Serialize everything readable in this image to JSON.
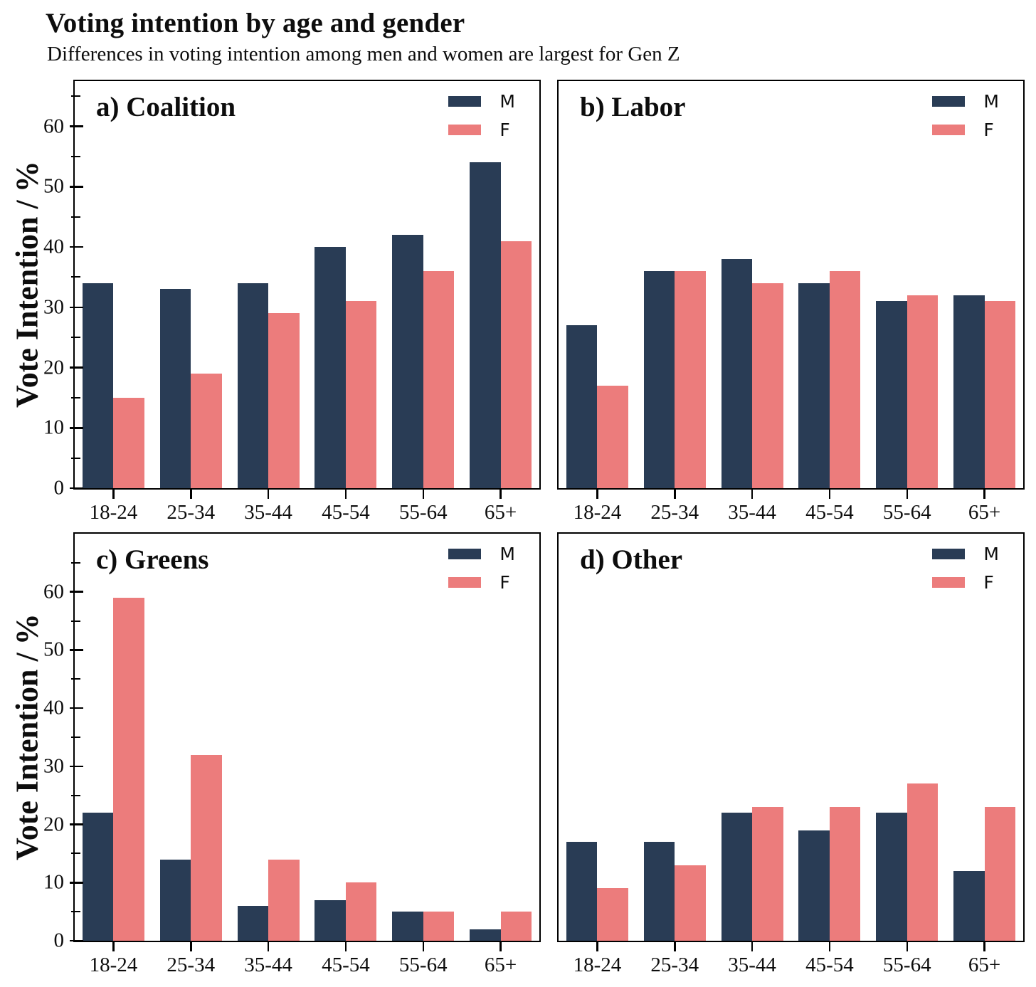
{
  "header": {
    "title": "Voting intention by age and gender",
    "subtitle": "Differences in voting intention among men and women are largest for Gen Z"
  },
  "y_axis": {
    "label": "Vote Intention / %",
    "tick_values": [
      0,
      10,
      20,
      30,
      40,
      50,
      60
    ],
    "minor_tick_values": [
      5,
      15,
      25,
      35,
      45,
      55,
      65
    ]
  },
  "legend": {
    "entries": [
      {
        "label": "M",
        "color": "#293C55"
      },
      {
        "label": "F",
        "color": "#EC7C7C"
      }
    ]
  },
  "colors": {
    "male": "#293C55",
    "female": "#EC7C7C",
    "axis": "#000000",
    "text": "#0d0d0d"
  },
  "categories": [
    "18-24",
    "25-34",
    "35-44",
    "45-54",
    "55-64",
    "65+"
  ],
  "chart_data": [
    {
      "type": "bar",
      "panel_label": "a) Coalition",
      "categories": [
        "18-24",
        "25-34",
        "35-44",
        "45-54",
        "55-64",
        "65+"
      ],
      "series": [
        {
          "name": "M",
          "values": [
            34,
            33,
            34,
            40,
            42,
            54
          ]
        },
        {
          "name": "F",
          "values": [
            15,
            19,
            29,
            31,
            36,
            41
          ]
        }
      ],
      "ylim": [
        0,
        67.5
      ],
      "yticks": [
        0,
        10,
        20,
        30,
        40,
        50,
        60
      ],
      "legend_position": "top-right",
      "grid": false
    },
    {
      "type": "bar",
      "panel_label": "b) Labor",
      "categories": [
        "18-24",
        "25-34",
        "35-44",
        "45-54",
        "55-64",
        "65+"
      ],
      "series": [
        {
          "name": "M",
          "values": [
            27,
            36,
            38,
            34,
            31,
            32
          ]
        },
        {
          "name": "F",
          "values": [
            17,
            36,
            34,
            36,
            32,
            31
          ]
        }
      ],
      "ylim": [
        0,
        67.5
      ],
      "yticks": [
        0,
        10,
        20,
        30,
        40,
        50,
        60
      ],
      "legend_position": "top-right",
      "grid": false
    },
    {
      "type": "bar",
      "panel_label": "c) Greens",
      "categories": [
        "18-24",
        "25-34",
        "35-44",
        "45-54",
        "55-64",
        "65+"
      ],
      "series": [
        {
          "name": "M",
          "values": [
            22,
            14,
            6,
            7,
            5,
            2
          ]
        },
        {
          "name": "F",
          "values": [
            59,
            32,
            14,
            10,
            5,
            5
          ]
        }
      ],
      "ylim": [
        0,
        70
      ],
      "yticks": [
        0,
        10,
        20,
        30,
        40,
        50,
        60
      ],
      "legend_position": "top-right",
      "grid": false
    },
    {
      "type": "bar",
      "panel_label": "d) Other",
      "categories": [
        "18-24",
        "25-34",
        "35-44",
        "45-54",
        "55-64",
        "65+"
      ],
      "series": [
        {
          "name": "M",
          "values": [
            17,
            17,
            22,
            19,
            22,
            12
          ]
        },
        {
          "name": "F",
          "values": [
            9,
            13,
            23,
            23,
            27,
            23
          ]
        }
      ],
      "ylim": [
        0,
        70
      ],
      "yticks": [
        0,
        10,
        20,
        30,
        40,
        50,
        60
      ],
      "legend_position": "top-right",
      "grid": false
    }
  ]
}
